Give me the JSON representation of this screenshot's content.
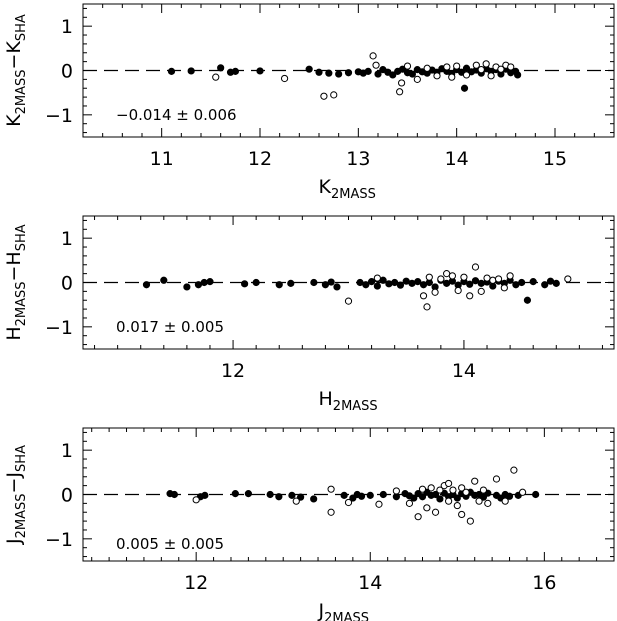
{
  "chart_data": [
    {
      "type": "scatter",
      "xlabel_main": "K",
      "xlabel_sub": "2MASS",
      "ylabel_parts": [
        "K",
        "2MASS",
        "−K",
        "SHA"
      ],
      "xlim": [
        10.2,
        15.6
      ],
      "ylim": [
        -1.5,
        1.5
      ],
      "xticks": [
        11,
        12,
        13,
        14,
        15
      ],
      "yticks": [
        -1,
        0,
        1
      ],
      "annotation": "−0.014 ± 0.006",
      "series": [
        {
          "marker": "filled",
          "points": [
            [
              11.1,
              -0.02
            ],
            [
              11.3,
              -0.01
            ],
            [
              11.6,
              0.06
            ],
            [
              11.7,
              -0.04
            ],
            [
              11.75,
              -0.02
            ],
            [
              12.0,
              -0.01
            ],
            [
              12.5,
              0.03
            ],
            [
              12.6,
              -0.04
            ],
            [
              12.7,
              -0.06
            ],
            [
              12.8,
              -0.08
            ],
            [
              12.9,
              -0.05
            ],
            [
              13.0,
              -0.03
            ],
            [
              13.05,
              -0.06
            ],
            [
              13.1,
              -0.02
            ],
            [
              13.2,
              -0.08
            ],
            [
              13.25,
              0.02
            ],
            [
              13.3,
              -0.04
            ],
            [
              13.35,
              -0.1
            ],
            [
              13.4,
              -0.02
            ],
            [
              13.45,
              0.03
            ],
            [
              13.5,
              -0.05
            ],
            [
              13.55,
              -0.08
            ],
            [
              13.6,
              0.02
            ],
            [
              13.65,
              -0.03
            ],
            [
              13.7,
              -0.06
            ],
            [
              13.75,
              0.01
            ],
            [
              13.8,
              -0.04
            ],
            [
              13.85,
              0.04
            ],
            [
              13.9,
              -0.02
            ],
            [
              13.95,
              -0.07
            ],
            [
              14.0,
              0.02
            ],
            [
              14.05,
              -0.04
            ],
            [
              14.1,
              0.05
            ],
            [
              14.15,
              -0.03
            ],
            [
              14.2,
              0.01
            ],
            [
              14.25,
              -0.06
            ],
            [
              14.3,
              0.04
            ],
            [
              14.35,
              -0.02
            ],
            [
              14.4,
              0.02
            ],
            [
              14.45,
              -0.08
            ],
            [
              14.5,
              0.03
            ],
            [
              14.55,
              -0.05
            ],
            [
              14.6,
              -0.02
            ],
            [
              14.62,
              -0.1
            ],
            [
              14.08,
              -0.4
            ]
          ]
        },
        {
          "marker": "open",
          "points": [
            [
              11.55,
              -0.15
            ],
            [
              12.25,
              -0.18
            ],
            [
              12.65,
              -0.58
            ],
            [
              12.75,
              -0.55
            ],
            [
              13.15,
              0.33
            ],
            [
              13.18,
              0.12
            ],
            [
              13.42,
              -0.48
            ],
            [
              13.44,
              -0.28
            ],
            [
              13.5,
              0.1
            ],
            [
              13.7,
              0.05
            ],
            [
              13.8,
              -0.12
            ],
            [
              13.9,
              0.08
            ],
            [
              14.0,
              0.1
            ],
            [
              14.1,
              -0.1
            ],
            [
              14.2,
              0.12
            ],
            [
              14.25,
              0.02
            ],
            [
              14.3,
              0.15
            ],
            [
              14.35,
              -0.12
            ],
            [
              14.4,
              0.08
            ],
            [
              14.45,
              0.03
            ],
            [
              14.5,
              0.12
            ],
            [
              14.55,
              0.08
            ],
            [
              13.6,
              -0.2
            ],
            [
              13.95,
              -0.15
            ]
          ]
        }
      ]
    },
    {
      "type": "scatter",
      "xlabel_main": "H",
      "xlabel_sub": "2MASS",
      "ylabel_parts": [
        "H",
        "2MASS",
        "−H",
        "SHA"
      ],
      "xlim": [
        10.7,
        15.3
      ],
      "ylim": [
        -1.5,
        1.5
      ],
      "xticks": [
        12,
        14
      ],
      "yticks": [
        -1,
        0,
        1
      ],
      "annotation": "0.017 ± 0.005",
      "series": [
        {
          "marker": "filled",
          "points": [
            [
              11.25,
              -0.05
            ],
            [
              11.4,
              0.05
            ],
            [
              11.6,
              -0.1
            ],
            [
              11.7,
              -0.05
            ],
            [
              11.75,
              0.0
            ],
            [
              11.8,
              0.02
            ],
            [
              12.1,
              -0.03
            ],
            [
              12.2,
              0.0
            ],
            [
              12.4,
              -0.05
            ],
            [
              12.5,
              -0.02
            ],
            [
              12.7,
              0.0
            ],
            [
              12.8,
              -0.05
            ],
            [
              12.85,
              0.01
            ],
            [
              12.9,
              -0.1
            ],
            [
              13.1,
              0.0
            ],
            [
              13.15,
              -0.05
            ],
            [
              13.2,
              0.02
            ],
            [
              13.25,
              -0.08
            ],
            [
              13.3,
              0.05
            ],
            [
              13.35,
              -0.03
            ],
            [
              13.4,
              0.0
            ],
            [
              13.45,
              -0.06
            ],
            [
              13.5,
              0.03
            ],
            [
              13.55,
              -0.02
            ],
            [
              13.6,
              0.02
            ],
            [
              13.65,
              -0.05
            ],
            [
              13.7,
              0.0
            ],
            [
              13.75,
              -0.1
            ],
            [
              13.8,
              0.05
            ],
            [
              13.85,
              -0.02
            ],
            [
              13.9,
              0.03
            ],
            [
              13.95,
              -0.06
            ],
            [
              14.0,
              0.02
            ],
            [
              14.05,
              -0.04
            ],
            [
              14.1,
              0.04
            ],
            [
              14.15,
              -0.02
            ],
            [
              14.2,
              0.01
            ],
            [
              14.25,
              -0.08
            ],
            [
              14.3,
              0.03
            ],
            [
              14.35,
              -0.02
            ],
            [
              14.4,
              0.05
            ],
            [
              14.45,
              -0.05
            ],
            [
              14.5,
              0.0
            ],
            [
              14.55,
              -0.4
            ],
            [
              14.6,
              0.02
            ],
            [
              14.7,
              -0.05
            ],
            [
              14.75,
              0.03
            ],
            [
              14.8,
              -0.02
            ],
            [
              13.25,
              0.08
            ]
          ]
        },
        {
          "marker": "open",
          "points": [
            [
              13.0,
              -0.42
            ],
            [
              13.25,
              0.1
            ],
            [
              13.65,
              -0.3
            ],
            [
              13.68,
              -0.55
            ],
            [
              13.7,
              0.12
            ],
            [
              13.8,
              0.08
            ],
            [
              13.85,
              0.2
            ],
            [
              13.9,
              0.15
            ],
            [
              13.95,
              -0.18
            ],
            [
              14.0,
              0.12
            ],
            [
              14.1,
              0.35
            ],
            [
              14.15,
              -0.2
            ],
            [
              14.2,
              0.1
            ],
            [
              14.25,
              0.05
            ],
            [
              14.3,
              0.08
            ],
            [
              14.35,
              -0.12
            ],
            [
              14.4,
              0.15
            ],
            [
              14.9,
              0.08
            ],
            [
              13.75,
              -0.22
            ],
            [
              14.05,
              -0.3
            ]
          ]
        }
      ]
    },
    {
      "type": "scatter",
      "xlabel_main": "J",
      "xlabel_sub": "2MASS",
      "ylabel_parts": [
        "J",
        "2MASS",
        "−J",
        "SHA"
      ],
      "xlim": [
        10.7,
        16.8
      ],
      "ylim": [
        -1.5,
        1.5
      ],
      "xticks": [
        12,
        14,
        16
      ],
      "yticks": [
        -1,
        0,
        1
      ],
      "annotation": "0.005 ± 0.005",
      "series": [
        {
          "marker": "filled",
          "points": [
            [
              11.7,
              0.02
            ],
            [
              11.75,
              0.0
            ],
            [
              12.05,
              -0.05
            ],
            [
              12.1,
              -0.02
            ],
            [
              12.45,
              0.02
            ],
            [
              12.6,
              0.02
            ],
            [
              12.85,
              0.0
            ],
            [
              12.95,
              -0.05
            ],
            [
              13.1,
              -0.02
            ],
            [
              13.2,
              -0.06
            ],
            [
              13.35,
              -0.1
            ],
            [
              13.7,
              -0.02
            ],
            [
              13.8,
              -0.08
            ],
            [
              13.85,
              0.0
            ],
            [
              13.9,
              -0.04
            ],
            [
              14.0,
              -0.02
            ],
            [
              14.15,
              0.0
            ],
            [
              14.3,
              -0.05
            ],
            [
              14.4,
              0.02
            ],
            [
              14.45,
              -0.03
            ],
            [
              14.5,
              -0.08
            ],
            [
              14.55,
              0.02
            ],
            [
              14.6,
              -0.05
            ],
            [
              14.65,
              0.05
            ],
            [
              14.7,
              -0.02
            ],
            [
              14.75,
              0.0
            ],
            [
              14.8,
              -0.1
            ],
            [
              14.85,
              0.03
            ],
            [
              14.9,
              -0.05
            ],
            [
              14.95,
              0.0
            ],
            [
              15.0,
              -0.08
            ],
            [
              15.05,
              0.02
            ],
            [
              15.1,
              -0.04
            ],
            [
              15.15,
              0.05
            ],
            [
              15.2,
              -0.02
            ],
            [
              15.25,
              0.0
            ],
            [
              15.3,
              -0.06
            ],
            [
              15.35,
              0.03
            ],
            [
              15.45,
              -0.02
            ],
            [
              15.5,
              -0.08
            ],
            [
              15.55,
              0.0
            ],
            [
              15.6,
              -0.04
            ],
            [
              15.7,
              -0.02
            ],
            [
              15.9,
              0.0
            ]
          ]
        },
        {
          "marker": "open",
          "points": [
            [
              12.0,
              -0.12
            ],
            [
              13.15,
              -0.15
            ],
            [
              13.55,
              -0.4
            ],
            [
              13.55,
              0.12
            ],
            [
              13.75,
              -0.18
            ],
            [
              14.1,
              -0.22
            ],
            [
              14.3,
              0.08
            ],
            [
              14.45,
              -0.2
            ],
            [
              14.55,
              -0.5
            ],
            [
              14.6,
              0.12
            ],
            [
              14.65,
              -0.3
            ],
            [
              14.7,
              0.15
            ],
            [
              14.75,
              -0.4
            ],
            [
              14.8,
              0.1
            ],
            [
              14.85,
              0.2
            ],
            [
              14.9,
              -0.15
            ],
            [
              14.95,
              0.1
            ],
            [
              15.0,
              -0.25
            ],
            [
              15.05,
              -0.45
            ],
            [
              15.1,
              0.05
            ],
            [
              15.15,
              -0.6
            ],
            [
              15.2,
              0.3
            ],
            [
              15.25,
              -0.15
            ],
            [
              15.3,
              0.1
            ],
            [
              15.35,
              -0.2
            ],
            [
              15.45,
              0.35
            ],
            [
              15.55,
              -0.15
            ],
            [
              15.65,
              0.55
            ],
            [
              15.75,
              0.05
            ],
            [
              15.05,
              0.15
            ],
            [
              14.9,
              0.25
            ]
          ]
        }
      ]
    }
  ]
}
